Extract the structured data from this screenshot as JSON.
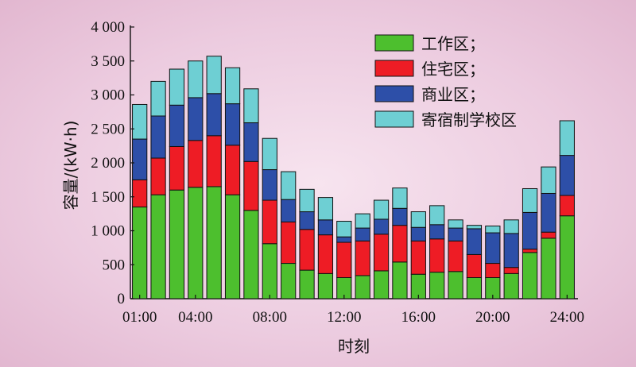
{
  "chart_data": {
    "type": "bar",
    "stacked": true,
    "xlabel": "时刻",
    "ylabel": "容量/(kW·h)",
    "ylim": [
      0,
      4000
    ],
    "yticks": [
      0,
      500,
      1000,
      1500,
      2000,
      2500,
      3000,
      3500,
      4000
    ],
    "ytick_labels": [
      "0",
      "500",
      "1 000",
      "1 500",
      "2 000",
      "2 500",
      "3 000",
      "3 500",
      "4 000"
    ],
    "categories": [
      "01:00",
      "02:00",
      "03:00",
      "04:00",
      "05:00",
      "06:00",
      "07:00",
      "08:00",
      "09:00",
      "10:00",
      "11:00",
      "12:00",
      "13:00",
      "14:00",
      "15:00",
      "16:00",
      "17:00",
      "18:00",
      "19:00",
      "20:00",
      "21:00",
      "22:00",
      "23:00",
      "24:00"
    ],
    "xtick_labels": [
      "01:00",
      "04:00",
      "08:00",
      "12:00",
      "16:00",
      "20:00",
      "24:00"
    ],
    "legend_position": "top-right",
    "series": [
      {
        "name": "工作区；",
        "color": "#4dbf2e",
        "values": [
          1350,
          1530,
          1600,
          1640,
          1650,
          1530,
          1300,
          810,
          520,
          420,
          370,
          310,
          340,
          410,
          540,
          360,
          390,
          400,
          310,
          310,
          370,
          680,
          890,
          1220
        ]
      },
      {
        "name": "住宅区；",
        "color": "#ee1c25",
        "values": [
          400,
          540,
          640,
          690,
          750,
          730,
          720,
          640,
          610,
          600,
          570,
          520,
          510,
          540,
          540,
          490,
          490,
          450,
          340,
          210,
          90,
          50,
          90,
          300
        ]
      },
      {
        "name": "商业区；",
        "color": "#2d4fa8",
        "values": [
          600,
          620,
          610,
          630,
          620,
          610,
          570,
          450,
          330,
          260,
          220,
          80,
          190,
          220,
          250,
          200,
          210,
          190,
          380,
          450,
          500,
          540,
          570,
          590
        ]
      },
      {
        "name": "寄宿制学校区",
        "color": "#6ecfd3",
        "values": [
          510,
          510,
          530,
          540,
          550,
          530,
          500,
          460,
          410,
          330,
          330,
          230,
          210,
          280,
          300,
          230,
          280,
          120,
          50,
          100,
          200,
          350,
          390,
          510
        ]
      }
    ]
  }
}
